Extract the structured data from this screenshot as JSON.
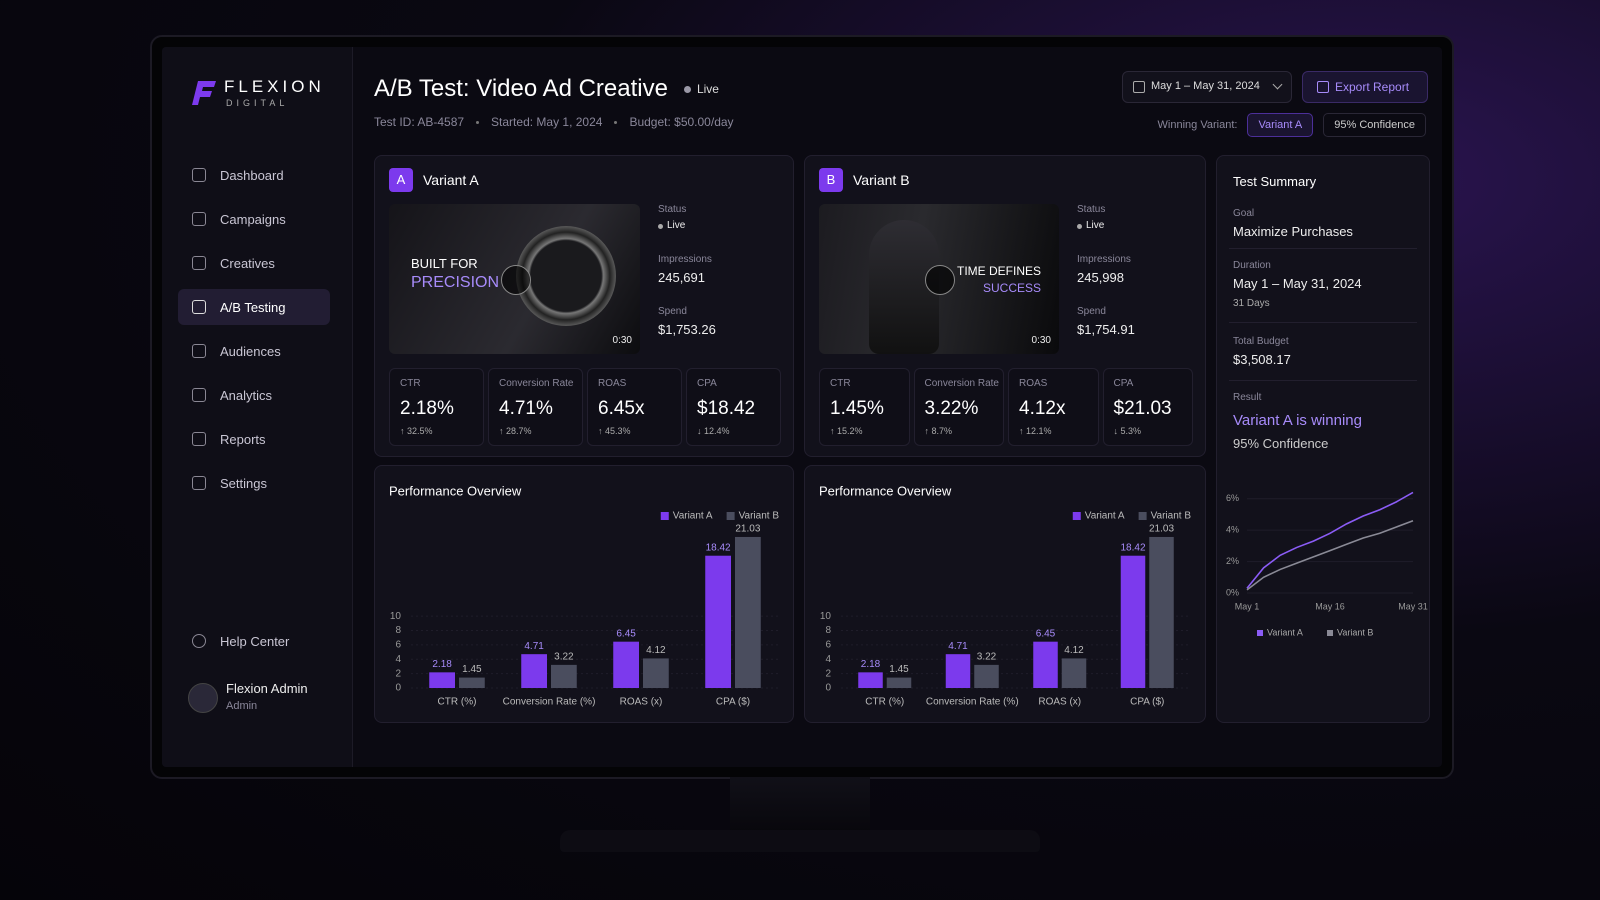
{
  "brand": {
    "name": "FLEXION",
    "tagline": "DIGITAL"
  },
  "nav": [
    "Dashboard",
    "Campaigns",
    "Creatives",
    "A/B Testing",
    "Audiences",
    "Analytics",
    "Reports",
    "Settings"
  ],
  "active_nav": 3,
  "help": "Help Center",
  "user": {
    "name": "Flexion Admin",
    "role": "Admin"
  },
  "header": {
    "title": "A/B Test: Video Ad Creative",
    "status": "Live",
    "test_id": "Test ID: AB-4587",
    "started": "Started: May 1, 2024",
    "budget": "Budget: $50.00/day",
    "date_range": "May 1 – May 31, 2024",
    "export": "Export Report",
    "winning_label": "Winning Variant:",
    "winning": "Variant A",
    "confidence": "95% Confidence"
  },
  "variants": [
    {
      "badge": "A",
      "name": "Variant A",
      "creative": {
        "line1": "BUILT FOR",
        "line2": "PRECISION",
        "duration": "0:30"
      },
      "status_label": "Status",
      "status": "Live",
      "impressions_label": "Impressions",
      "impressions": "245,691",
      "spend_label": "Spend",
      "spend": "$1,753.26",
      "metrics": [
        {
          "label": "CTR",
          "value": "2.18%",
          "change": "↑ 32.5%"
        },
        {
          "label": "Conversion Rate",
          "value": "4.71%",
          "change": "↑ 28.7%"
        },
        {
          "label": "ROAS",
          "value": "6.45x",
          "change": "↑ 45.3%"
        },
        {
          "label": "CPA",
          "value": "$18.42",
          "change": "↓ 12.4%"
        }
      ],
      "chart": {
        "type": "bar",
        "title": "Performance Overview",
        "categories": [
          "CTR (%)",
          "Conversion Rate (%)",
          "ROAS (x)",
          "CPA ($)"
        ],
        "series": [
          {
            "name": "Variant A",
            "color": "#7c3aed",
            "values": [
              2.18,
              4.71,
              6.45,
              18.42
            ]
          },
          {
            "name": "Variant B",
            "color": "#4a4d5e",
            "values": [
              1.45,
              3.22,
              4.12,
              21.03
            ]
          }
        ],
        "ylim": [
          0,
          22
        ],
        "yticks": [
          0,
          2,
          4,
          6,
          8,
          10
        ],
        "grid": true
      }
    },
    {
      "badge": "B",
      "name": "Variant B",
      "creative": {
        "line1": "TIME DEFINES",
        "line2": "SUCCESS",
        "duration": "0:30"
      },
      "status_label": "Status",
      "status": "Live",
      "impressions_label": "Impressions",
      "impressions": "245,998",
      "spend_label": "Spend",
      "spend": "$1,754.91",
      "metrics": [
        {
          "label": "CTR",
          "value": "1.45%",
          "change": "↑ 15.2%"
        },
        {
          "label": "Conversion Rate",
          "value": "3.22%",
          "change": "↑ 8.7%"
        },
        {
          "label": "ROAS",
          "value": "4.12x",
          "change": "↑ 12.1%"
        },
        {
          "label": "CPA",
          "value": "$21.03",
          "change": "↓ 5.3%"
        }
      ],
      "chart": {
        "type": "bar",
        "title": "Performance Overview",
        "categories": [
          "CTR (%)",
          "Conversion Rate (%)",
          "ROAS (x)",
          "CPA ($)"
        ],
        "series": [
          {
            "name": "Variant A",
            "color": "#7c3aed",
            "values": [
              2.18,
              4.71,
              6.45,
              18.42
            ]
          },
          {
            "name": "Variant B",
            "color": "#4a4d5e",
            "values": [
              1.45,
              3.22,
              4.12,
              21.03
            ]
          }
        ],
        "ylim": [
          0,
          22
        ],
        "yticks": [
          0,
          2,
          4,
          6,
          8,
          10
        ],
        "grid": true
      }
    }
  ],
  "summary": {
    "title": "Test Summary",
    "goal_label": "Goal",
    "goal": "Maximize Purchases",
    "duration_label": "Duration",
    "duration": "May 1 – May 31, 2024",
    "days": "31 Days",
    "budget_label": "Total Budget",
    "budget": "$3,508.17",
    "result_label": "Result",
    "result": "Variant A is winning",
    "confidence": "95% Confidence",
    "chart": {
      "type": "line",
      "categories": [
        "May 1",
        null,
        null,
        null,
        null,
        "May 16",
        null,
        null,
        null,
        null,
        "May 31"
      ],
      "series": [
        {
          "name": "Variant A",
          "color": "#8b5cf6",
          "values": [
            0.3,
            1.6,
            2.4,
            2.9,
            3.3,
            3.8,
            4.4,
            4.9,
            5.3,
            5.8,
            6.4
          ]
        },
        {
          "name": "Variant B",
          "color": "#8a8a96",
          "values": [
            0.2,
            1.0,
            1.5,
            1.9,
            2.3,
            2.7,
            3.1,
            3.5,
            3.8,
            4.2,
            4.6
          ]
        }
      ],
      "ylim": [
        0,
        7
      ],
      "yticks": [
        {
          "value": 0,
          "label": "0%"
        },
        {
          "value": 2,
          "label": "2%"
        },
        {
          "value": 4,
          "label": "4%"
        },
        {
          "value": 6,
          "label": "6%"
        }
      ]
    }
  }
}
